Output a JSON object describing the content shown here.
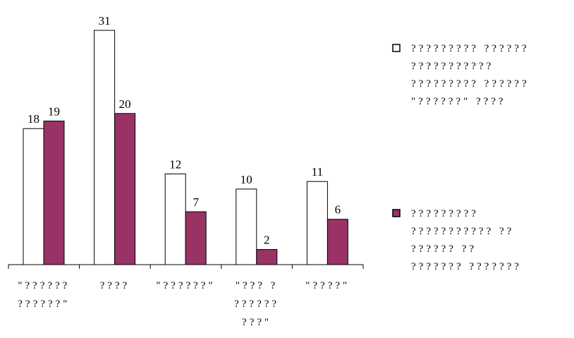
{
  "chart_data": {
    "type": "bar",
    "title": "",
    "xlabel": "",
    "ylabel": "",
    "ylim": [
      0,
      31
    ],
    "grid": false,
    "legend_position": "right",
    "colors": {
      "series1": "#ffffff",
      "series2": "#993366",
      "stroke": "#000000"
    },
    "categories": [
      [
        "\"??????",
        "??????\""
      ],
      [
        "????"
      ],
      [
        "\"??????\""
      ],
      [
        "\"??? ?",
        "??????",
        "???\""
      ],
      [
        "\"????\""
      ]
    ],
    "series": [
      {
        "name": [
          "????????? ??????",
          "???????????",
          "????????? ??????",
          "\"??????\" ????"
        ],
        "values": [
          18,
          31,
          12,
          10,
          11
        ]
      },
      {
        "name": [
          "?????????",
          "??????????? ??",
          "?????? ??",
          "??????? ???????"
        ],
        "values": [
          19,
          20,
          7,
          2,
          6
        ]
      }
    ]
  }
}
